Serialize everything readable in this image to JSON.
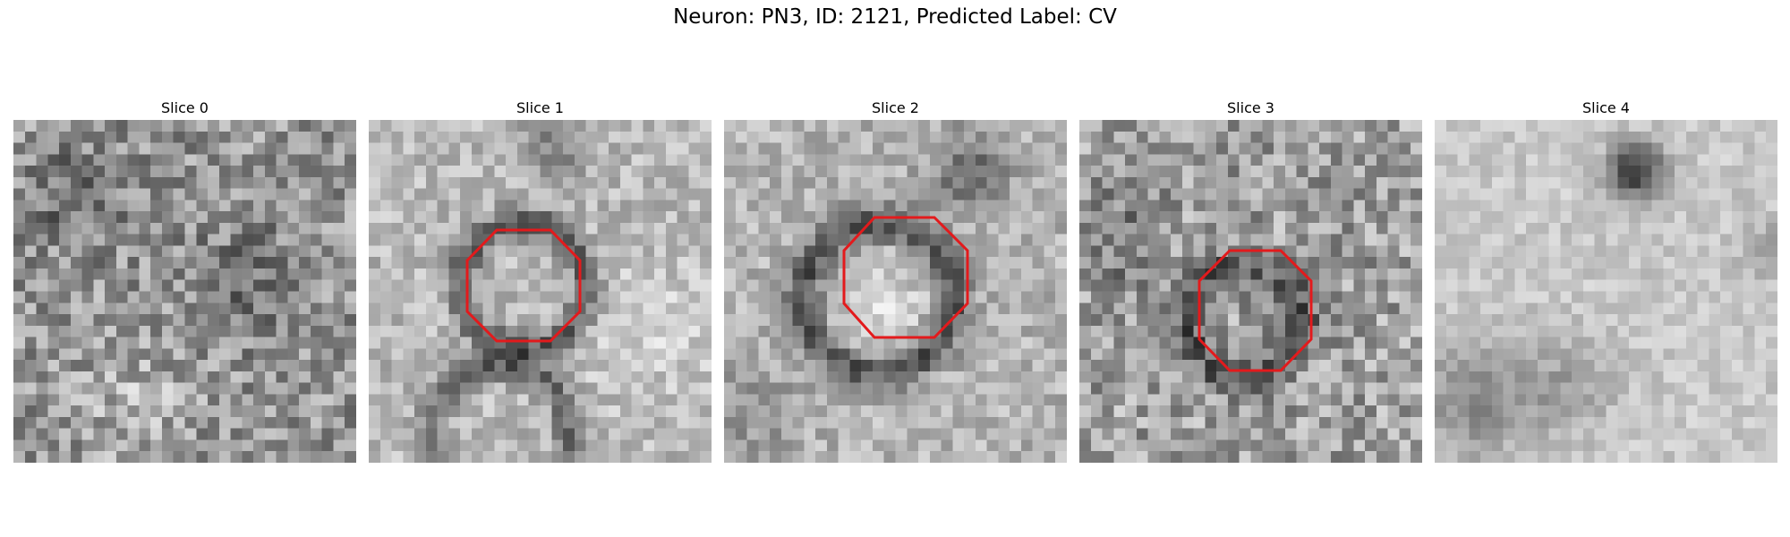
{
  "figure": {
    "title": "Neuron: PN3, ID: 2121, Predicted Label: CV"
  },
  "slices": [
    {
      "label": "Slice 0",
      "has_roi": false
    },
    {
      "label": "Slice 1",
      "has_roi": true
    },
    {
      "label": "Slice 2",
      "has_roi": true
    },
    {
      "label": "Slice 3",
      "has_roi": true
    },
    {
      "label": "Slice 4",
      "has_roi": false
    }
  ],
  "colors": {
    "roi_outline": "#e31a1c",
    "colormap": "gray"
  }
}
